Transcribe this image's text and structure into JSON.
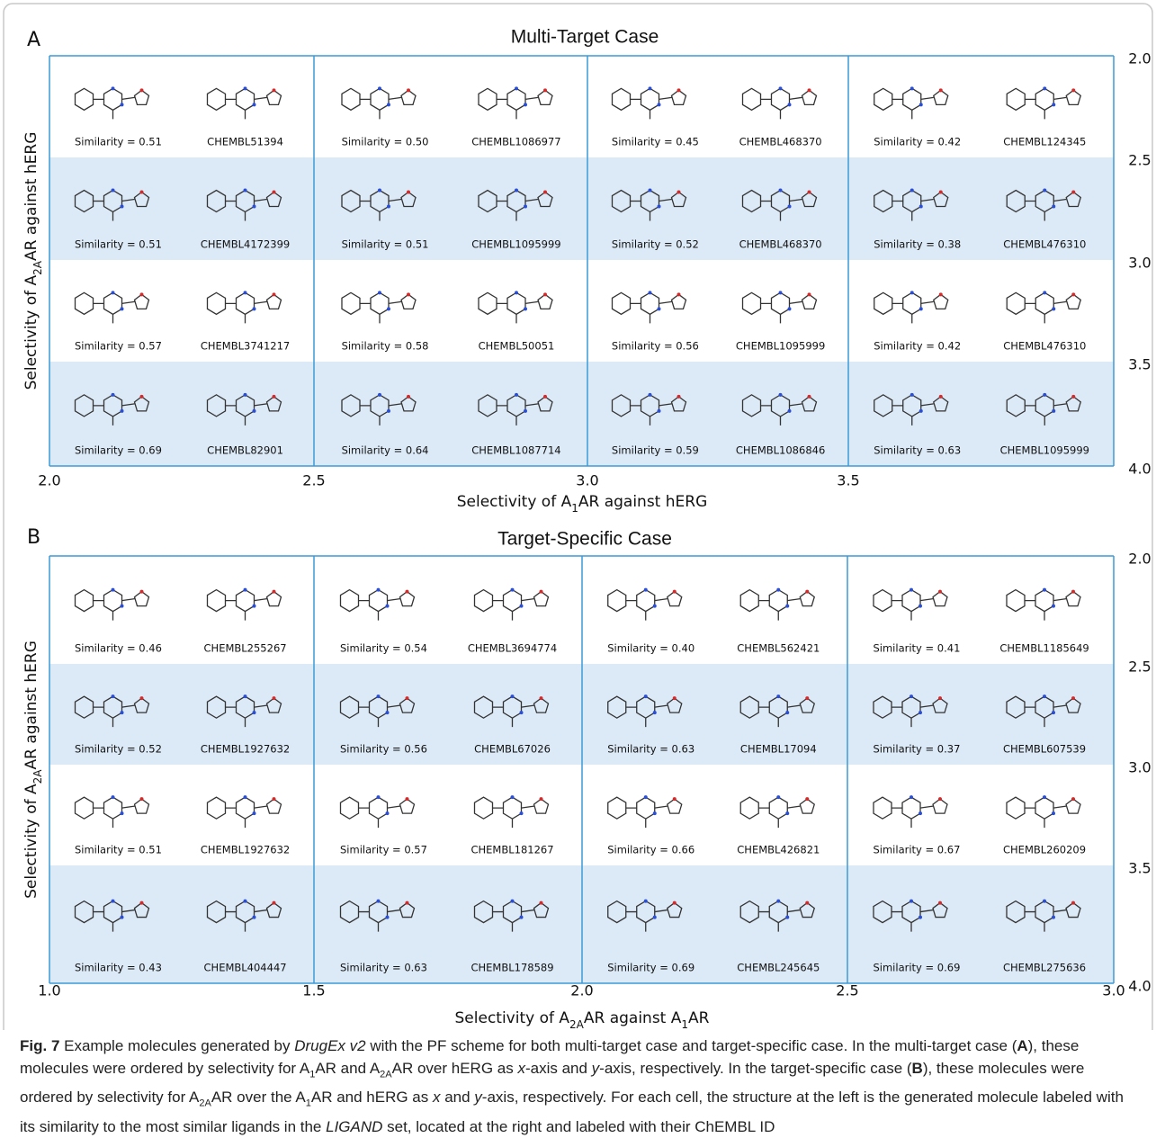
{
  "panels": [
    {
      "label": "A",
      "title": "Multi-Target Case",
      "x_label": [
        {
          "text": "Selectivity of A"
        },
        {
          "text": "1",
          "sub": true
        },
        {
          "text": "AR against hERG"
        }
      ],
      "y_label": [
        {
          "text": "Selectivity of A"
        },
        {
          "text": "2A",
          "sub": true
        },
        {
          "text": "AR against hERG"
        }
      ],
      "xticks": [
        "2.0",
        "2.5",
        "3.0",
        "3.5"
      ],
      "yticks": [
        "2.0",
        "2.5",
        "3.0",
        "3.5",
        "4.0"
      ],
      "rows": [
        [
          {
            "similarity": "Similarity = 0.51",
            "id": "CHEMBL51394"
          },
          {
            "similarity": "Similarity = 0.50",
            "id": "CHEMBL1086977"
          },
          {
            "similarity": "Similarity = 0.45",
            "id": "CHEMBL468370"
          },
          {
            "similarity": "Similarity = 0.42",
            "id": "CHEMBL124345"
          }
        ],
        [
          {
            "similarity": "Similarity = 0.51",
            "id": "CHEMBL4172399"
          },
          {
            "similarity": "Similarity = 0.51",
            "id": "CHEMBL1095999"
          },
          {
            "similarity": "Similarity = 0.52",
            "id": "CHEMBL468370"
          },
          {
            "similarity": "Similarity = 0.38",
            "id": "CHEMBL476310"
          }
        ],
        [
          {
            "similarity": "Similarity = 0.57",
            "id": "CHEMBL3741217"
          },
          {
            "similarity": "Similarity = 0.58",
            "id": "CHEMBL50051"
          },
          {
            "similarity": "Similarity = 0.56",
            "id": "CHEMBL1095999"
          },
          {
            "similarity": "Similarity = 0.42",
            "id": "CHEMBL476310"
          }
        ],
        [
          {
            "similarity": "Similarity = 0.69",
            "id": "CHEMBL82901"
          },
          {
            "similarity": "Similarity = 0.64",
            "id": "CHEMBL1087714"
          },
          {
            "similarity": "Similarity = 0.59",
            "id": "CHEMBL1086846"
          },
          {
            "similarity": "Similarity = 0.63",
            "id": "CHEMBL1095999"
          }
        ]
      ]
    },
    {
      "label": "B",
      "title": "Target-Specific Case",
      "x_label": [
        {
          "text": "Selectivity of A"
        },
        {
          "text": "2A",
          "sub": true
        },
        {
          "text": "AR against A"
        },
        {
          "text": "1",
          "sub": true
        },
        {
          "text": "AR"
        }
      ],
      "y_label": [
        {
          "text": "Selectivity of A"
        },
        {
          "text": "2A",
          "sub": true
        },
        {
          "text": "AR against hERG"
        }
      ],
      "xticks": [
        "1.0",
        "1.5",
        "2.0",
        "2.5",
        "3.0"
      ],
      "yticks": [
        "2.0",
        "2.5",
        "3.0",
        "3.5",
        "4.0"
      ],
      "rows": [
        [
          {
            "similarity": "Similarity = 0.46",
            "id": "CHEMBL255267"
          },
          {
            "similarity": "Similarity = 0.54",
            "id": "CHEMBL3694774"
          },
          {
            "similarity": "Similarity = 0.40",
            "id": "CHEMBL562421"
          },
          {
            "similarity": "Similarity = 0.41",
            "id": "CHEMBL1185649"
          }
        ],
        [
          {
            "similarity": "Similarity = 0.52",
            "id": "CHEMBL1927632"
          },
          {
            "similarity": "Similarity = 0.56",
            "id": "CHEMBL67026"
          },
          {
            "similarity": "Similarity = 0.63",
            "id": "CHEMBL17094"
          },
          {
            "similarity": "Similarity = 0.37",
            "id": "CHEMBL607539"
          }
        ],
        [
          {
            "similarity": "Similarity = 0.51",
            "id": "CHEMBL1927632"
          },
          {
            "similarity": "Similarity = 0.57",
            "id": "CHEMBL181267"
          },
          {
            "similarity": "Similarity = 0.66",
            "id": "CHEMBL426821"
          },
          {
            "similarity": "Similarity = 0.67",
            "id": "CHEMBL260209"
          }
        ],
        [
          {
            "similarity": "Similarity = 0.43",
            "id": "CHEMBL404447"
          },
          {
            "similarity": "Similarity = 0.63",
            "id": "CHEMBL178589"
          },
          {
            "similarity": "Similarity = 0.69",
            "id": "CHEMBL245645"
          },
          {
            "similarity": "Similarity = 0.69",
            "id": "CHEMBL275636"
          }
        ]
      ]
    }
  ],
  "caption": [
    {
      "text": "Fig. 7",
      "style": "bold"
    },
    {
      "text": "  Example molecules generated by "
    },
    {
      "text": "DrugEx v2",
      "style": "italic"
    },
    {
      "text": " with the PF scheme for both multi-target case and target-specific case. In the multi-target case ("
    },
    {
      "text": "A",
      "style": "bold"
    },
    {
      "text": "), these molecules were ordered by selectivity for A"
    },
    {
      "text": "1",
      "sub": true
    },
    {
      "text": "AR and A"
    },
    {
      "text": "2A",
      "sub": true
    },
    {
      "text": "AR over hERG as "
    },
    {
      "text": "x",
      "style": "italic"
    },
    {
      "text": "-axis and "
    },
    {
      "text": "y",
      "style": "italic"
    },
    {
      "text": "-axis, respectively. In the target-specific case ("
    },
    {
      "text": "B",
      "style": "bold"
    },
    {
      "text": "), these molecules were ordered by selectivity for A"
    },
    {
      "text": "2A",
      "sub": true
    },
    {
      "text": "AR over the A"
    },
    {
      "text": "1",
      "sub": true
    },
    {
      "text": "AR and hERG as "
    },
    {
      "text": "x",
      "style": "italic"
    },
    {
      "text": " and "
    },
    {
      "text": "y",
      "style": "italic"
    },
    {
      "text": "-axis, respectively. For each cell, the structure at the left is the generated molecule labeled with its similarity to the most similar ligands in the "
    },
    {
      "text": "LIGAND",
      "style": "italic"
    },
    {
      "text": " set, located at the right and labeled with their ChEMBL ID"
    }
  ]
}
